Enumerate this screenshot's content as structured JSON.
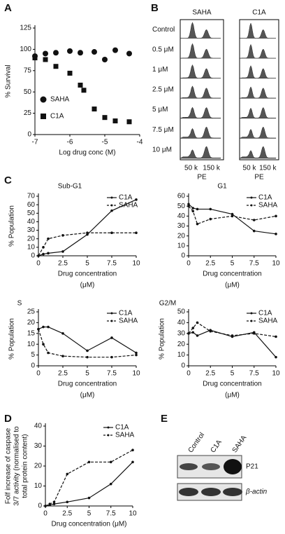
{
  "panel_labels": [
    "A",
    "B",
    "C",
    "D",
    "E"
  ],
  "chart_data": [
    {
      "type": "scatter",
      "x_label": "Log drug conc (M)",
      "y_label": "% Survival",
      "xlim": [
        -7,
        -4
      ],
      "xticks": [
        -7,
        -6,
        -5,
        -4
      ],
      "ylim": [
        0,
        125
      ],
      "yticks": [
        0,
        25,
        50,
        75,
        100,
        125
      ],
      "legend": "lower left",
      "series": [
        {
          "name": "SAHA",
          "color": "#111111",
          "marker": "circle",
          "x": [
            -7,
            -6.7,
            -6.4,
            -6,
            -5.7,
            -5.3,
            -5,
            -4.7,
            -4.3
          ],
          "values": [
            92,
            95,
            96,
            98,
            96,
            97,
            88,
            99,
            95
          ]
        },
        {
          "name": "C1A",
          "color": "#111111",
          "marker": "square",
          "x": [
            -7,
            -6.7,
            -6.4,
            -6,
            -5.7,
            -5.6,
            -5.3,
            -5,
            -4.7,
            -4.3
          ],
          "values": [
            90,
            88,
            80,
            72,
            58,
            52,
            30,
            20,
            16,
            15
          ]
        }
      ]
    },
    {
      "type": "line",
      "title": "Sub-G1",
      "x_label": "Drug concentration",
      "x_unit": "(μM)",
      "y_label": "% Population",
      "x": [
        0,
        0.5,
        1,
        2.5,
        5,
        7.5,
        10
      ],
      "xlim": [
        0,
        10
      ],
      "xticks": [
        0,
        2.5,
        5,
        7.5,
        10
      ],
      "ylim": [
        0,
        70
      ],
      "yticks": [
        0,
        10,
        20,
        30,
        40,
        50,
        60,
        70
      ],
      "legend": "upper right",
      "series": [
        {
          "name": "C1A",
          "color": "#111111",
          "dash": false,
          "values": [
            0,
            2,
            3,
            5,
            25,
            53,
            66
          ]
        },
        {
          "name": "SAHA",
          "color": "#111111",
          "dash": true,
          "values": [
            0,
            10,
            20,
            24,
            27,
            27,
            27
          ]
        }
      ]
    },
    {
      "type": "line",
      "title": "G1",
      "x_label": "Drug concentration",
      "x_unit": "(μM)",
      "x": [
        0,
        0.5,
        1,
        2.5,
        5,
        7.5,
        10
      ],
      "xlim": [
        0,
        10
      ],
      "xticks": [
        0,
        2.5,
        5,
        7.5,
        10
      ],
      "ylim": [
        0,
        60
      ],
      "yticks": [
        0,
        10,
        20,
        30,
        40,
        50,
        60
      ],
      "legend": "upper right",
      "series": [
        {
          "name": "C1A",
          "color": "#111111",
          "dash": false,
          "values": [
            52,
            48,
            47,
            47,
            42,
            25,
            22
          ]
        },
        {
          "name": "SAHA",
          "color": "#111111",
          "dash": true,
          "values": [
            50,
            45,
            32,
            37,
            40,
            36,
            40
          ]
        }
      ]
    },
    {
      "type": "line",
      "title": "S",
      "x_label": "Drug concentration",
      "x_unit": "(μM)",
      "y_label": "% Population",
      "x": [
        0,
        0.5,
        1,
        2.5,
        5,
        7.5,
        10
      ],
      "xlim": [
        0,
        10
      ],
      "xticks": [
        0,
        2.5,
        5,
        7.5,
        10
      ],
      "ylim": [
        0,
        25
      ],
      "yticks": [
        0,
        5,
        10,
        15,
        20,
        25
      ],
      "legend": "upper right",
      "series": [
        {
          "name": "C1A",
          "color": "#111111",
          "dash": false,
          "values": [
            17,
            18,
            18,
            15,
            7,
            13,
            6
          ]
        },
        {
          "name": "SAHA",
          "color": "#111111",
          "dash": true,
          "values": [
            17,
            10,
            6,
            4.5,
            4,
            4,
            5
          ]
        }
      ]
    },
    {
      "type": "line",
      "title": "G2/M",
      "x_label": "Drug concentration",
      "x_unit": "(μM)",
      "y_label": "% Population",
      "x": [
        0,
        0.5,
        1,
        2.5,
        5,
        7.5,
        10
      ],
      "xlim": [
        0,
        10
      ],
      "xticks": [
        0,
        2.5,
        5,
        7.5,
        10
      ],
      "ylim": [
        0,
        50
      ],
      "yticks": [
        0,
        10,
        20,
        30,
        40,
        50
      ],
      "legend": "upper right",
      "series": [
        {
          "name": "C1A",
          "color": "#111111",
          "dash": false,
          "values": [
            30,
            31,
            28,
            33,
            27,
            31,
            8
          ]
        },
        {
          "name": "SAHA",
          "color": "#111111",
          "dash": true,
          "values": [
            30,
            35,
            40,
            32,
            28,
            30,
            27
          ]
        }
      ]
    },
    {
      "type": "line",
      "x_label": "Drug concentration (μM)",
      "y_label": [
        "Folf increase of caspase",
        "3/7 activity (normalised to",
        "total protein content)"
      ],
      "x": [
        0,
        0.5,
        1,
        2.5,
        5,
        7.5,
        10
      ],
      "xlim": [
        0,
        10
      ],
      "xticks": [
        0,
        2.5,
        5,
        7.5,
        10
      ],
      "ylim": [
        0,
        40
      ],
      "yticks": [
        0,
        10,
        20,
        30,
        40
      ],
      "legend": "upper right",
      "series": [
        {
          "name": "C1A",
          "color": "#111111",
          "dash": false,
          "values": [
            0,
            0.5,
            1,
            2,
            4,
            11,
            22
          ]
        },
        {
          "name": "SAHA",
          "color": "#111111",
          "dash": true,
          "values": [
            0,
            1,
            2,
            16,
            22,
            22,
            28
          ]
        }
      ]
    }
  ],
  "flow_panel": {
    "columns": [
      "SAHA",
      "C1A"
    ],
    "rows": [
      "Control",
      "0.5 μM",
      "1 μM",
      "2.5 μM",
      "5 μM",
      "7.5 μM",
      "10 μM"
    ],
    "x_ticks": [
      "50 k",
      "150 k"
    ],
    "x_label": "PE"
  },
  "blot_panel": {
    "lanes": [
      "Control",
      "C1A",
      "SAHA"
    ],
    "bands": [
      "P21",
      "β-actin"
    ]
  }
}
